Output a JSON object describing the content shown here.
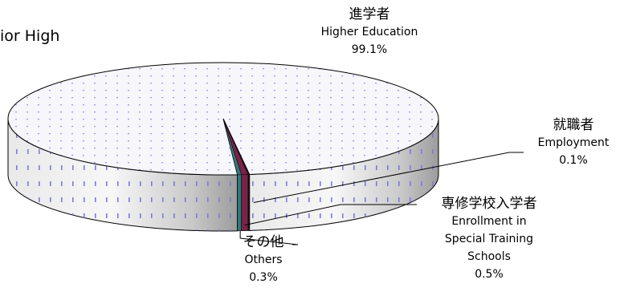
{
  "chart_data": {
    "type": "pie",
    "title": "ior High",
    "slices": [
      {
        "label_jp": "進学者",
        "label_en": "Higher Education",
        "value": 99.1,
        "pct_label": "99.1%",
        "color": "#e8e8f4"
      },
      {
        "label_jp": "就職者",
        "label_en": "Employment",
        "value": 0.1,
        "pct_label": "0.1%",
        "color": "#1a1a1a"
      },
      {
        "label_jp": "専修学校入学者",
        "label_en": "Enrollment in Special Training Schools",
        "label_en_lines": [
          "Enrollment in",
          "Special Training",
          "Schools"
        ],
        "value": 0.5,
        "pct_label": "0.5%",
        "color": "#7a2248"
      },
      {
        "label_jp": "その他",
        "label_en": "Others",
        "value": 0.3,
        "pct_label": "0.3%",
        "color": "#2f7a7a"
      }
    ],
    "three_d": true,
    "pattern": "dotted"
  }
}
